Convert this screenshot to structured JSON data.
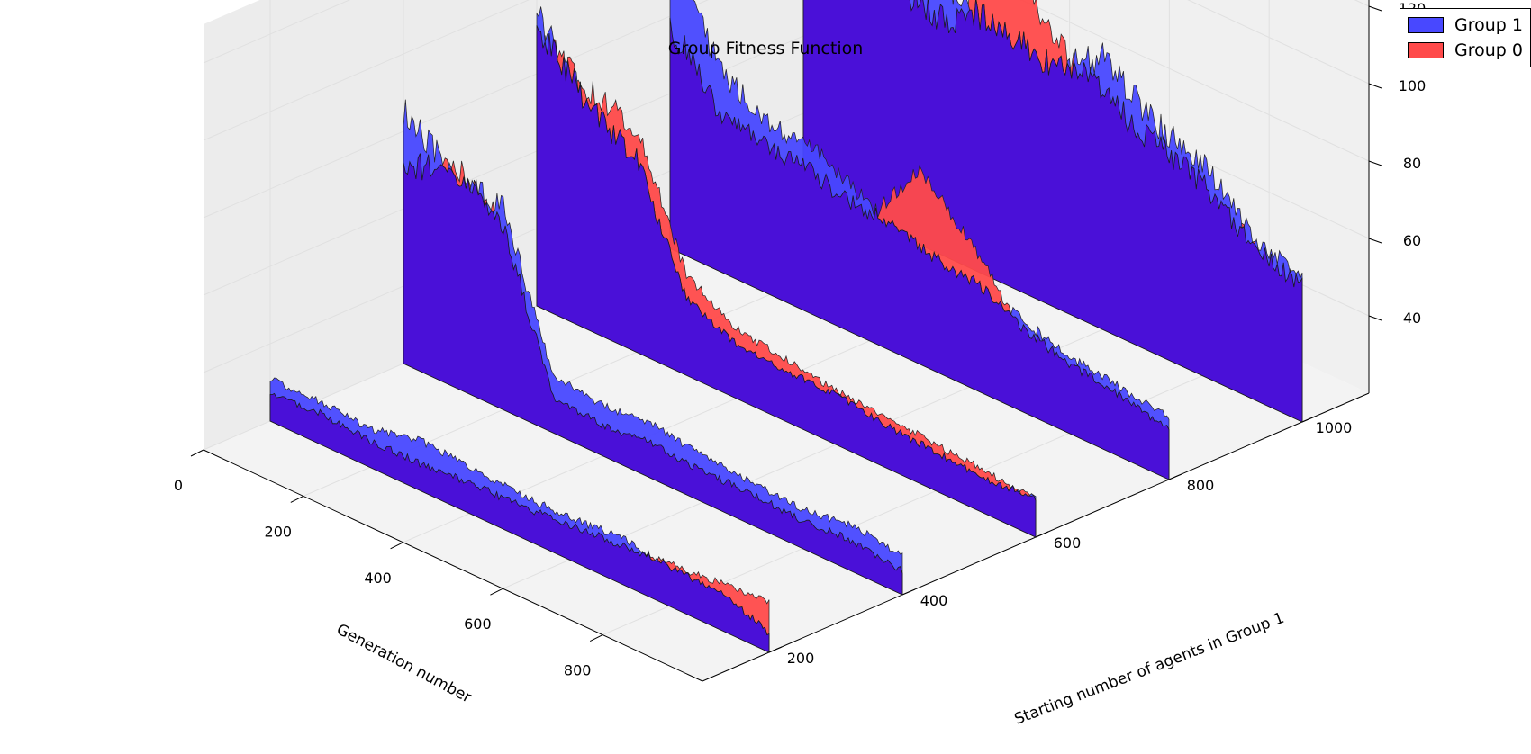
{
  "chart_data": {
    "type": "area",
    "projection": "3d",
    "title": "Group Fitness Function",
    "xlabel": "Generation number",
    "ylabel": "Starting number of agents in Group 1",
    "zlabel": "",
    "x_ticks": [
      "0",
      "200",
      "400",
      "600",
      "800"
    ],
    "y_ticks": [
      "200",
      "400",
      "600",
      "800",
      "1000"
    ],
    "z_ticks": [
      "40",
      "60",
      "80",
      "100",
      "120"
    ],
    "xlim": [
      0,
      1000
    ],
    "ylim": [
      100,
      1100
    ],
    "zlim": [
      20,
      130
    ],
    "grid": true,
    "legend_position": "top-right",
    "series": [
      {
        "name": "Group 1",
        "color": "#4848ff"
      },
      {
        "name": "Group 0",
        "color": "#ff4a4a"
      }
    ],
    "slices": [
      {
        "start_agents": 200,
        "x": [
          0,
          100,
          200,
          300,
          400,
          500,
          600,
          700,
          800,
          900,
          1000
        ],
        "group1": [
          31,
          31,
          30,
          33,
          32,
          31,
          31,
          32,
          30,
          30,
          25
        ],
        "group0": [
          27,
          28,
          27,
          27,
          28,
          28,
          29,
          30,
          31,
          32,
          33
        ]
      },
      {
        "start_agents": 400,
        "x": [
          0,
          100,
          200,
          300,
          400,
          500,
          600,
          700,
          800,
          900,
          1000
        ],
        "group1": [
          85,
          75,
          72,
          35,
          33,
          34,
          32,
          31,
          30,
          32,
          30
        ],
        "group0": [
          70,
          78,
          68,
          29,
          28,
          29,
          28,
          28,
          27,
          28,
          26
        ]
      },
      {
        "start_agents": 600,
        "x": [
          0,
          100,
          200,
          300,
          400,
          500,
          600,
          700,
          800,
          900,
          1000
        ],
        "group1": [
          95,
          78,
          70,
          40,
          34,
          33,
          33,
          31,
          30,
          29,
          30
        ],
        "group0": [
          90,
          82,
          78,
          46,
          38,
          36,
          34,
          33,
          32,
          31,
          30
        ]
      },
      {
        "start_agents": 800,
        "x": [
          0,
          100,
          200,
          300,
          400,
          500,
          600,
          700,
          800,
          900,
          1000
        ],
        "group1": [
          100,
          72,
          64,
          62,
          55,
          50,
          48,
          44,
          40,
          38,
          36
        ],
        "group0": [
          78,
          60,
          58,
          56,
          52,
          70,
          58,
          42,
          38,
          36,
          33
        ]
      },
      {
        "start_agents": 1000,
        "x": [
          0,
          100,
          200,
          300,
          400,
          500,
          600,
          700,
          800,
          900,
          1000
        ],
        "group1": [
          115,
          110,
          100,
          88,
          85,
          82,
          90,
          80,
          75,
          62,
          58
        ],
        "group0": [
          95,
          100,
          85,
          80,
          110,
          90,
          80,
          75,
          70,
          60,
          55
        ]
      }
    ]
  }
}
